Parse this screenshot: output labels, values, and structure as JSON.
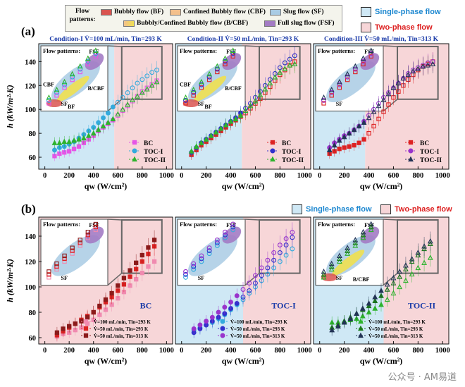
{
  "flow_patterns": {
    "label": "Flow patterns:",
    "items": [
      {
        "name": "Bubbly flow (BF)",
        "color": "#d9534f"
      },
      {
        "name": "Confined Bubbly flow (CBF)",
        "color": "#f3c08c"
      },
      {
        "name": "Slug flow (SF)",
        "color": "#a9cbe4"
      },
      {
        "name": "Bubbly/Confined Bubbly flow (B/CBF)",
        "color": "#f0e050"
      },
      {
        "name": "Full slug flow (FSF)",
        "color": "#a37bc4"
      }
    ]
  },
  "phase_legend": {
    "single": {
      "label": "Single-phase flow",
      "color": "#cfe8f5"
    },
    "two": {
      "label": "Two-phase flow",
      "color": "#f7d6d8"
    }
  },
  "rows": [
    {
      "label": "(a)"
    },
    {
      "label": "(b)"
    }
  ],
  "annotations": {
    "sf": "SF",
    "fsf": "FSF",
    "cbf": "CBF",
    "bf": "BF",
    "bcbf": "B/CBF"
  },
  "watermark": "公众号 · AM易道",
  "chart_data": [
    {
      "type": "scatter",
      "id": "a1",
      "title": "Condition-I   V̇=100 mL/min, Tin=293 K",
      "xlabel": "qw (W/cm²)",
      "ylabel": "h (kW/m²·K)",
      "xlim": [
        -50,
        1050
      ],
      "ylim": [
        50,
        155
      ],
      "xticks": [
        0,
        200,
        400,
        600,
        800,
        1000
      ],
      "yticks": [
        60,
        80,
        100,
        120,
        140
      ],
      "phase_boundary": 570,
      "series": [
        {
          "name": "BC",
          "color": "#e655e6",
          "marker": "square",
          "x": [
            80,
            120,
            160,
            200,
            240,
            280,
            320,
            360,
            400,
            440,
            480,
            520,
            560,
            600,
            640,
            680,
            720,
            760,
            800,
            840,
            880,
            920
          ],
          "y": [
            61,
            63,
            64,
            65,
            67,
            69,
            72,
            75,
            78,
            82,
            85,
            88,
            91,
            95,
            99,
            103,
            107,
            111,
            115,
            118,
            121,
            124
          ]
        },
        {
          "name": "TOC-I",
          "color": "#33aadd",
          "marker": "circle",
          "x": [
            80,
            120,
            160,
            200,
            240,
            280,
            320,
            360,
            400,
            440,
            480,
            520,
            560,
            600,
            640,
            680,
            720,
            760,
            800,
            840,
            880,
            920
          ],
          "y": [
            66,
            68,
            69,
            71,
            73,
            76,
            79,
            82,
            85,
            89,
            93,
            97,
            102,
            106,
            110,
            114,
            118,
            122,
            125,
            128,
            131,
            133
          ]
        },
        {
          "name": "TOC-II",
          "color": "#2db32d",
          "marker": "triangle",
          "x": [
            80,
            120,
            160,
            200,
            240,
            280,
            320,
            360,
            400,
            440,
            480,
            520,
            560,
            600,
            640,
            680,
            720,
            760,
            800,
            840,
            880,
            920
          ],
          "y": [
            72,
            72,
            73,
            73,
            74,
            75,
            76,
            78,
            80,
            83,
            86,
            89,
            92,
            96,
            100,
            104,
            108,
            111,
            114,
            117,
            120,
            123
          ]
        }
      ],
      "legend": [
        "BC",
        "TOC-I",
        "TOC-II"
      ]
    },
    {
      "type": "scatter",
      "id": "a2",
      "title": "Condition-II   V̇=50 mL/min, Tin=293 K",
      "xlabel": "qw (W/cm²)",
      "ylabel": "",
      "xlim": [
        -50,
        1050
      ],
      "ylim": [
        50,
        155
      ],
      "xticks": [
        0,
        200,
        400,
        600,
        800,
        1000
      ],
      "yticks": [
        60,
        80,
        100,
        120,
        140
      ],
      "phase_boundary": 490,
      "series": [
        {
          "name": "BC",
          "color": "#dd2222",
          "marker": "square",
          "x": [
            80,
            120,
            160,
            200,
            240,
            280,
            320,
            360,
            400,
            440,
            480,
            520,
            560,
            600,
            640,
            680,
            720,
            760,
            800,
            840,
            880,
            920
          ],
          "y": [
            62,
            66,
            70,
            73,
            76,
            79,
            82,
            85,
            88,
            91,
            94,
            97,
            101,
            105,
            109,
            114,
            119,
            124,
            129,
            133,
            137,
            140
          ]
        },
        {
          "name": "TOC-I",
          "color": "#3030cc",
          "marker": "circle",
          "x": [
            80,
            120,
            160,
            200,
            240,
            280,
            320,
            360,
            400,
            440,
            480,
            520,
            560,
            600,
            640,
            680,
            720,
            760,
            800,
            840,
            880,
            920
          ],
          "y": [
            64,
            68,
            72,
            75,
            78,
            81,
            84,
            87,
            90,
            93,
            97,
            101,
            105,
            110,
            115,
            120,
            125,
            130,
            135,
            139,
            142,
            145
          ]
        },
        {
          "name": "TOC-II",
          "color": "#2db32d",
          "marker": "triangle",
          "x": [
            80,
            120,
            160,
            200,
            240,
            280,
            320,
            360,
            400,
            440,
            480,
            520,
            560,
            600,
            640,
            680,
            720,
            760,
            800,
            840,
            880,
            920
          ],
          "y": [
            65,
            69,
            72,
            75,
            78,
            81,
            84,
            87,
            90,
            92,
            95,
            99,
            103,
            107,
            112,
            117,
            122,
            127,
            131,
            134,
            137,
            138
          ]
        }
      ],
      "legend": [
        "BC",
        "TOC-I",
        "TOC-II"
      ]
    },
    {
      "type": "scatter",
      "id": "a3",
      "title": "Condition-III   V̇=50 mL/min, Tin=313 K",
      "xlabel": "qw (W/cm²)",
      "ylabel": "",
      "xlim": [
        -50,
        1050
      ],
      "ylim": [
        50,
        155
      ],
      "xticks": [
        0,
        200,
        400,
        600,
        800,
        1000
      ],
      "yticks": [
        60,
        80,
        100,
        120,
        140
      ],
      "phase_boundary": 370,
      "series": [
        {
          "name": "BC",
          "color": "#dd2222",
          "marker": "square",
          "x": [
            80,
            120,
            160,
            200,
            240,
            280,
            320,
            360,
            400,
            440,
            480,
            520,
            560,
            600,
            640,
            680,
            720,
            760,
            800,
            840,
            880,
            920
          ],
          "y": [
            63,
            65,
            67,
            68,
            69,
            70,
            72,
            75,
            80,
            86,
            92,
            98,
            104,
            110,
            115,
            120,
            125,
            129,
            133,
            136,
            138,
            140
          ]
        },
        {
          "name": "TOC-I",
          "color": "#9933cc",
          "marker": "circle",
          "x": [
            80,
            120,
            160,
            200,
            240,
            280,
            320,
            360,
            400,
            440,
            480,
            520,
            560,
            600,
            640,
            680,
            720,
            760,
            800,
            840,
            880,
            920
          ],
          "y": [
            68,
            72,
            75,
            78,
            80,
            83,
            86,
            90,
            95,
            100,
            105,
            110,
            114,
            118,
            122,
            126,
            130,
            133,
            135,
            137,
            139,
            140
          ]
        },
        {
          "name": "TOC-II",
          "color": "#223355",
          "marker": "triangle",
          "x": [
            80,
            120,
            160,
            200,
            240,
            280,
            320,
            360,
            400,
            440,
            480,
            520,
            560,
            600,
            640,
            680,
            720,
            760,
            800,
            840,
            880,
            920
          ],
          "y": [
            66,
            70,
            74,
            77,
            80,
            83,
            86,
            89,
            93,
            98,
            103,
            108,
            113,
            118,
            122,
            126,
            129,
            132,
            134,
            136,
            137,
            138
          ]
        }
      ],
      "legend": [
        "BC",
        "TOC-I",
        "TOC-II"
      ]
    },
    {
      "type": "scatter",
      "id": "b1",
      "title": "BC",
      "xlabel": "qw (W/cm²)",
      "ylabel": "h (kW/m²·K)",
      "xlim": [
        -50,
        1050
      ],
      "ylim": [
        55,
        155
      ],
      "xticks": [
        0,
        200,
        400,
        600,
        800,
        1000
      ],
      "yticks": [
        60,
        80,
        100,
        120,
        140
      ],
      "phase_boundary": null,
      "series": [
        {
          "name": "V̇=100 mL/min, Tin=293 K",
          "color": "#f08ab0",
          "marker": "square",
          "x": [
            100,
            150,
            200,
            250,
            300,
            350,
            400,
            450,
            500,
            550,
            600,
            650,
            700,
            750,
            800,
            850,
            900
          ],
          "y": [
            61,
            63,
            64,
            66,
            68,
            71,
            74,
            78,
            82,
            86,
            91,
            96,
            101,
            106,
            111,
            116,
            120
          ]
        },
        {
          "name": "V̇=50 mL/min, Tin=293 K",
          "color": "#dd2222",
          "marker": "square",
          "x": [
            100,
            150,
            200,
            250,
            300,
            350,
            400,
            450,
            500,
            550,
            600,
            650,
            700,
            750,
            800,
            850,
            900
          ],
          "y": [
            62,
            65,
            68,
            71,
            74,
            77,
            80,
            84,
            88,
            92,
            97,
            102,
            108,
            114,
            120,
            126,
            132
          ]
        },
        {
          "name": "V̇=50 mL/min, Tin=313 K",
          "color": "#8b1a1a",
          "marker": "square",
          "x": [
            100,
            150,
            200,
            250,
            300,
            350,
            400,
            450,
            500,
            550,
            600,
            650,
            700,
            750,
            800,
            850,
            900
          ],
          "y": [
            64,
            67,
            69,
            71,
            73,
            76,
            80,
            85,
            90,
            95,
            101,
            107,
            113,
            119,
            125,
            131,
            137
          ]
        }
      ],
      "legend": [
        "V̇=100 mL/min, Tin=293 K",
        "V̇=50 mL/min, Tin=293 K",
        "V̇=50 mL/min, Tin=313 K"
      ]
    },
    {
      "type": "scatter",
      "id": "b2",
      "title": "TOC-I",
      "xlabel": "qw (W/cm²)",
      "ylabel": "",
      "xlim": [
        -50,
        1050
      ],
      "ylim": [
        55,
        155
      ],
      "xticks": [
        0,
        200,
        400,
        600,
        800,
        1000
      ],
      "yticks": [
        60,
        80,
        100,
        120,
        140
      ],
      "phase_boundary": 500,
      "series": [
        {
          "name": "V̇=100 mL/min, Tin=293 K",
          "color": "#33aadd",
          "marker": "circle",
          "x": [
            100,
            150,
            200,
            250,
            300,
            350,
            400,
            450,
            500,
            550,
            600,
            650,
            700,
            750,
            800,
            850,
            900
          ],
          "y": [
            66,
            68,
            70,
            72,
            75,
            78,
            82,
            86,
            90,
            95,
            100,
            105,
            110,
            115,
            120,
            125,
            130
          ]
        },
        {
          "name": "V̇=50 mL/min, Tin=293 K",
          "color": "#3030cc",
          "marker": "circle",
          "x": [
            100,
            150,
            200,
            250,
            300,
            350,
            400,
            450,
            500,
            550,
            600,
            650,
            700,
            750,
            800,
            850,
            900
          ],
          "y": [
            64,
            67,
            70,
            73,
            76,
            79,
            83,
            87,
            92,
            97,
            103,
            109,
            115,
            121,
            127,
            133,
            139
          ]
        },
        {
          "name": "V̇=50 mL/min, Tin=313 K",
          "color": "#9933cc",
          "marker": "circle",
          "x": [
            100,
            150,
            200,
            250,
            300,
            350,
            400,
            450,
            500,
            550,
            600,
            650,
            700,
            750,
            800,
            850,
            900
          ],
          "y": [
            67,
            70,
            73,
            76,
            80,
            84,
            88,
            93,
            98,
            103,
            109,
            115,
            121,
            127,
            133,
            138,
            143
          ]
        }
      ],
      "legend": [
        "V̇=100 mL/min, Tin=293 K",
        "V̇=50 mL/min, Tin=293 K",
        "V̇=50 mL/min, Tin=313 K"
      ]
    },
    {
      "type": "scatter",
      "id": "b3",
      "title": "TOC-II",
      "xlabel": "qw (W/cm²)",
      "ylabel": "",
      "xlim": [
        -50,
        1050
      ],
      "ylim": [
        55,
        155
      ],
      "xticks": [
        0,
        200,
        400,
        600,
        800,
        1000
      ],
      "yticks": [
        60,
        80,
        100,
        120,
        140
      ],
      "phase_boundary": 520,
      "series": [
        {
          "name": "V̇=100 mL/min, Tin=293 K",
          "color": "#2db32d",
          "marker": "triangle",
          "x": [
            100,
            150,
            200,
            250,
            300,
            350,
            400,
            450,
            500,
            550,
            600,
            650,
            700,
            750,
            800,
            850,
            900
          ],
          "y": [
            72,
            72,
            73,
            74,
            75,
            77,
            80,
            83,
            86,
            90,
            95,
            100,
            105,
            110,
            115,
            119,
            123
          ]
        },
        {
          "name": "V̇=50 mL/min, Tin=293 K",
          "color": "#1a7a1a",
          "marker": "triangle",
          "x": [
            100,
            150,
            200,
            250,
            300,
            350,
            400,
            450,
            500,
            550,
            600,
            650,
            700,
            750,
            800,
            850,
            900
          ],
          "y": [
            68,
            70,
            73,
            76,
            79,
            82,
            85,
            89,
            93,
            98,
            103,
            108,
            114,
            120,
            125,
            130,
            134
          ]
        },
        {
          "name": "V̇=50 mL/min, Tin=313 K",
          "color": "#223355",
          "marker": "triangle",
          "x": [
            100,
            150,
            200,
            250,
            300,
            350,
            400,
            450,
            500,
            550,
            600,
            650,
            700,
            750,
            800,
            850,
            900
          ],
          "y": [
            66,
            69,
            72,
            75,
            79,
            83,
            87,
            92,
            97,
            102,
            107,
            112,
            117,
            122,
            127,
            132,
            136
          ]
        }
      ],
      "legend": [
        "V̇=100 mL/min, Tin=293 K",
        "V̇=50 mL/min, Tin=293 K",
        "V̇=50 mL/min, Tin=313 K"
      ]
    }
  ]
}
